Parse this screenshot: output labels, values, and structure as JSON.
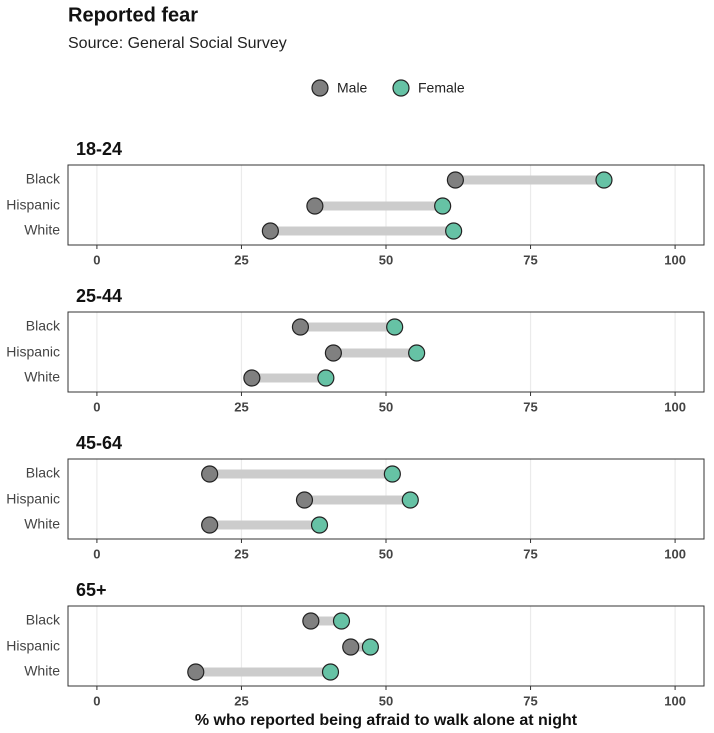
{
  "title": "Reported fear",
  "subtitle": "Source: General Social Survey",
  "x_label": "% who reported being afraid to walk alone at night",
  "chart_data": [
    {
      "type": "dumbbell",
      "title": "18-24",
      "categories": [
        "Black",
        "Hispanic",
        "White"
      ],
      "series": [
        {
          "name": "Male",
          "color": "#808080",
          "values": [
            62,
            37.7,
            30
          ]
        },
        {
          "name": "Female",
          "color": "#66c2a5",
          "values": [
            87.7,
            59.8,
            61.7
          ]
        }
      ],
      "xlim": [
        -5,
        105
      ],
      "xticks": [
        0,
        25,
        50,
        75,
        100
      ],
      "grid": true
    },
    {
      "type": "dumbbell",
      "title": "25-44",
      "categories": [
        "Black",
        "Hispanic",
        "White"
      ],
      "series": [
        {
          "name": "Male",
          "color": "#808080",
          "values": [
            35.2,
            40.9,
            26.8
          ]
        },
        {
          "name": "Female",
          "color": "#66c2a5",
          "values": [
            51.5,
            55.3,
            39.6
          ]
        }
      ],
      "xlim": [
        -5,
        105
      ],
      "xticks": [
        0,
        25,
        50,
        75,
        100
      ],
      "grid": true
    },
    {
      "type": "dumbbell",
      "title": "45-64",
      "categories": [
        "Black",
        "Hispanic",
        "White"
      ],
      "series": [
        {
          "name": "Male",
          "color": "#808080",
          "values": [
            19.5,
            35.9,
            19.5
          ]
        },
        {
          "name": "Female",
          "color": "#66c2a5",
          "values": [
            51.1,
            54.2,
            38.5
          ]
        }
      ],
      "xlim": [
        -5,
        105
      ],
      "xticks": [
        0,
        25,
        50,
        75,
        100
      ],
      "grid": true
    },
    {
      "type": "dumbbell",
      "title": "65+",
      "categories": [
        "Black",
        "Hispanic",
        "White"
      ],
      "series": [
        {
          "name": "Male",
          "color": "#808080",
          "values": [
            37,
            43.9,
            17.1
          ]
        },
        {
          "name": "Female",
          "color": "#66c2a5",
          "values": [
            42.3,
            47.3,
            40.4
          ]
        }
      ],
      "xlim": [
        -5,
        105
      ],
      "xticks": [
        0,
        25,
        50,
        75,
        100
      ],
      "grid": true
    }
  ]
}
